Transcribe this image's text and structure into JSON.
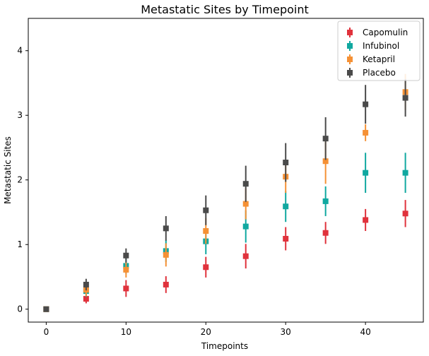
{
  "chart_data": {
    "type": "scatter",
    "title": "Metastatic Sites by Timepoint",
    "xlabel": "Timepoints",
    "ylabel": "Metastatic Sites",
    "x": [
      0,
      5,
      10,
      15,
      20,
      25,
      30,
      35,
      40,
      45
    ],
    "xlim": [
      -2.25,
      47.25
    ],
    "ylim": [
      -0.2,
      4.5
    ],
    "xticks": [
      "0",
      "10",
      "20",
      "30",
      "40"
    ],
    "yticks": [
      "0",
      "1",
      "2",
      "3",
      "4"
    ],
    "grid": false,
    "legend_position": "top-right",
    "series": [
      {
        "name": "Capomulin",
        "color": "#e0323c",
        "values": [
          0.0,
          0.16,
          0.32,
          0.38,
          0.65,
          0.82,
          1.09,
          1.18,
          1.38,
          1.48
        ],
        "errors": [
          0.0,
          0.07,
          0.13,
          0.13,
          0.16,
          0.19,
          0.18,
          0.17,
          0.17,
          0.21
        ]
      },
      {
        "name": "Infubinol",
        "color": "#10a8a0",
        "values": [
          0.0,
          0.28,
          0.67,
          0.9,
          1.05,
          1.28,
          1.59,
          1.67,
          2.11,
          2.11
        ],
        "errors": [
          0.0,
          0.09,
          0.12,
          0.17,
          0.2,
          0.25,
          0.24,
          0.23,
          0.31,
          0.31
        ]
      },
      {
        "name": "Ketapril",
        "color": "#f59135",
        "values": [
          0.0,
          0.3,
          0.61,
          0.84,
          1.21,
          1.63,
          2.05,
          2.29,
          2.73,
          3.36
        ],
        "errors": [
          0.0,
          0.1,
          0.12,
          0.18,
          0.2,
          0.24,
          0.25,
          0.35,
          0.13,
          0.28
        ]
      },
      {
        "name": "Placebo",
        "color": "#4a4a4a",
        "values": [
          0.0,
          0.38,
          0.83,
          1.25,
          1.53,
          1.94,
          2.27,
          2.64,
          3.17,
          3.27
        ],
        "errors": [
          0.0,
          0.09,
          0.11,
          0.19,
          0.23,
          0.28,
          0.3,
          0.33,
          0.3,
          0.29
        ]
      }
    ]
  }
}
